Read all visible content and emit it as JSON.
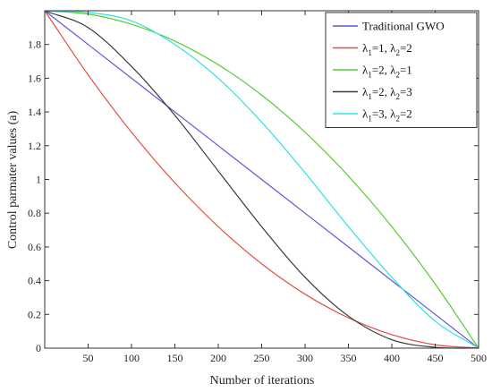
{
  "chart_data": {
    "type": "line",
    "xlabel": "Number of iterations",
    "ylabel": "Control parmater values (a)",
    "xlim": [
      0,
      500
    ],
    "ylim": [
      0,
      2
    ],
    "xticks": [
      50,
      100,
      150,
      200,
      250,
      300,
      350,
      400,
      450,
      500
    ],
    "yticks": [
      0,
      0.2,
      0.4,
      0.6,
      0.8,
      1,
      1.2,
      1.4,
      1.6,
      1.8
    ],
    "xtick_labels": [
      "50",
      "100",
      "150",
      "200",
      "250",
      "300",
      "350",
      "400",
      "450",
      "500"
    ],
    "ytick_labels": [
      "0",
      "0.2",
      "0.4",
      "0.6",
      "0.8",
      "1",
      "1.2",
      "1.4",
      "1.6",
      "1.8"
    ],
    "grid": false,
    "legend_position": "top-right",
    "x": [
      0,
      50,
      100,
      150,
      200,
      250,
      300,
      350,
      400,
      450,
      500
    ],
    "series": [
      {
        "name": "Traditional GWO",
        "legend_parts": [
          {
            "t": "Traditional GWO"
          }
        ],
        "color": "#5a5ad6",
        "values": [
          2.0,
          1.8,
          1.6,
          1.4,
          1.2,
          1.0,
          0.8,
          0.6,
          0.4,
          0.2,
          0.0
        ]
      },
      {
        "name": "λ1=1, λ2=2",
        "legend_parts": [
          {
            "t": "λ"
          },
          {
            "t": "1",
            "sub": true
          },
          {
            "t": "=1, λ"
          },
          {
            "t": "2",
            "sub": true
          },
          {
            "t": "=2"
          }
        ],
        "color": "#e0504a",
        "values": [
          2.0,
          1.62,
          1.28,
          0.98,
          0.72,
          0.5,
          0.32,
          0.18,
          0.08,
          0.02,
          0.0
        ]
      },
      {
        "name": "λ1=2, λ2=1",
        "legend_parts": [
          {
            "t": "λ"
          },
          {
            "t": "1",
            "sub": true
          },
          {
            "t": "=2, λ"
          },
          {
            "t": "2",
            "sub": true
          },
          {
            "t": "=1"
          }
        ],
        "color": "#55cc33",
        "values": [
          2.0,
          1.98,
          1.92,
          1.82,
          1.68,
          1.5,
          1.28,
          1.02,
          0.72,
          0.38,
          0.0
        ]
      },
      {
        "name": "λ1=2, λ2=3",
        "legend_parts": [
          {
            "t": "λ"
          },
          {
            "t": "1",
            "sub": true
          },
          {
            "t": "=2, λ"
          },
          {
            "t": "2",
            "sub": true
          },
          {
            "t": "=3"
          }
        ],
        "color": "#3a3a3a",
        "values": [
          2.0,
          1.9,
          1.67,
          1.38,
          1.05,
          0.72,
          0.42,
          0.19,
          0.05,
          0.005,
          0.0
        ]
      },
      {
        "name": "λ1=3, λ2=2",
        "legend_parts": [
          {
            "t": "λ"
          },
          {
            "t": "1",
            "sub": true
          },
          {
            "t": "=3, λ"
          },
          {
            "t": "2",
            "sub": true
          },
          {
            "t": "=2"
          }
        ],
        "color": "#33dfe0",
        "values": [
          2.0,
          1.99,
          1.94,
          1.8,
          1.6,
          1.34,
          1.04,
          0.72,
          0.42,
          0.16,
          0.0
        ]
      }
    ]
  }
}
